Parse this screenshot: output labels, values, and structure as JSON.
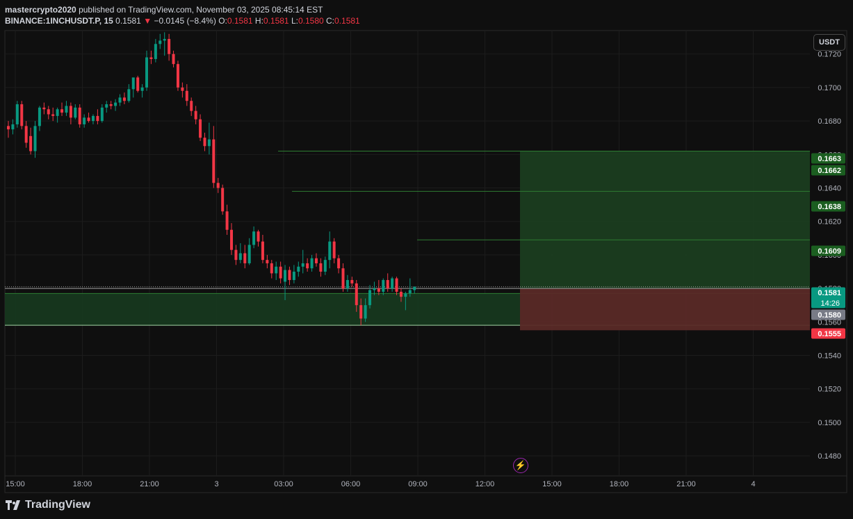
{
  "header": {
    "publisher": "mastercrypto2020",
    "published_text": " published on TradingView.com, November 03, 2025 08:45:14 EST",
    "symbol": "BINANCE:1INCHUSDT.P, 15",
    "price": "0.1581",
    "change_arrow": "▼",
    "change": "−0.0145 (−8.4%)",
    "o_label": "O:",
    "o_value": "0.1581",
    "h_label": "H:",
    "h_value": "0.1581",
    "l_label": "L:",
    "l_value": "0.1580",
    "c_label": "C:",
    "c_value": "0.1581"
  },
  "currency_button": "USDT",
  "footer": {
    "logo_text": "TradingView"
  },
  "colors": {
    "up": "#089981",
    "down": "#f23645",
    "profit_zone": "#1b3d20",
    "loss_zone": "#5a2a27",
    "background": "#0f0f0f"
  },
  "chart_data": {
    "type": "candlestick",
    "y_ticks": [
      "0.1720",
      "0.1700",
      "0.1680",
      "0.1660",
      "0.1640",
      "0.1620",
      "0.1600",
      "0.1580",
      "0.1560",
      "0.1540",
      "0.1520",
      "0.1500",
      "0.1480"
    ],
    "y_range": [
      0.1468,
      0.1734
    ],
    "x_ticks": [
      "15:00",
      "18:00",
      "21:00",
      "3",
      "03:00",
      "06:00",
      "09:00",
      "12:00",
      "15:00",
      "18:00",
      "21:00",
      "4"
    ],
    "price_labels": [
      {
        "text": "0.1663",
        "value": 0.1663,
        "color": "#1b5e20"
      },
      {
        "text": "0.1662",
        "value": 0.1662,
        "color": "#1b5e20"
      },
      {
        "text": "0.1638",
        "value": 0.1638,
        "color": "#1b5e20"
      },
      {
        "text": "0.1609",
        "value": 0.1609,
        "color": "#1b5e20"
      },
      {
        "text": "0.1581",
        "value": 0.1581,
        "color": "#089981",
        "sub": "14:26"
      },
      {
        "text": "0.1580",
        "value": 0.158,
        "color": "#787b86"
      },
      {
        "text": "0.1555",
        "value": 0.1555,
        "color": "#f23645"
      }
    ],
    "levels": [
      0.1662,
      0.1638,
      0.1609
    ],
    "support_zone": [
      0.1558,
      0.1577
    ],
    "position": {
      "entry": 0.158,
      "target": 0.1662,
      "stop": 0.1555
    },
    "candles": [
      {
        "o": 0.1677,
        "h": 0.168,
        "l": 0.167,
        "c": 0.1675
      },
      {
        "o": 0.1675,
        "h": 0.1681,
        "l": 0.1672,
        "c": 0.1678
      },
      {
        "o": 0.1678,
        "h": 0.1692,
        "l": 0.1676,
        "c": 0.169
      },
      {
        "o": 0.169,
        "h": 0.1692,
        "l": 0.1675,
        "c": 0.1677
      },
      {
        "o": 0.1677,
        "h": 0.168,
        "l": 0.1664,
        "c": 0.1667
      },
      {
        "o": 0.1671,
        "h": 0.1676,
        "l": 0.166,
        "c": 0.1662
      },
      {
        "o": 0.1662,
        "h": 0.168,
        "l": 0.1658,
        "c": 0.1677
      },
      {
        "o": 0.1677,
        "h": 0.1689,
        "l": 0.1674,
        "c": 0.1688
      },
      {
        "o": 0.1688,
        "h": 0.1691,
        "l": 0.1684,
        "c": 0.1687
      },
      {
        "o": 0.1687,
        "h": 0.1689,
        "l": 0.1681,
        "c": 0.1684
      },
      {
        "o": 0.1684,
        "h": 0.1688,
        "l": 0.168,
        "c": 0.1683
      },
      {
        "o": 0.1683,
        "h": 0.1688,
        "l": 0.1679,
        "c": 0.1687
      },
      {
        "o": 0.1687,
        "h": 0.1691,
        "l": 0.1683,
        "c": 0.1685
      },
      {
        "o": 0.1685,
        "h": 0.1692,
        "l": 0.1683,
        "c": 0.1689
      },
      {
        "o": 0.1689,
        "h": 0.1691,
        "l": 0.1678,
        "c": 0.1682
      },
      {
        "o": 0.1682,
        "h": 0.169,
        "l": 0.1681,
        "c": 0.1688
      },
      {
        "o": 0.1688,
        "h": 0.169,
        "l": 0.1676,
        "c": 0.1678
      },
      {
        "o": 0.1678,
        "h": 0.1684,
        "l": 0.1676,
        "c": 0.1682
      },
      {
        "o": 0.1682,
        "h": 0.1685,
        "l": 0.1679,
        "c": 0.168
      },
      {
        "o": 0.168,
        "h": 0.1684,
        "l": 0.1678,
        "c": 0.1683
      },
      {
        "o": 0.1683,
        "h": 0.1687,
        "l": 0.1678,
        "c": 0.168
      },
      {
        "o": 0.168,
        "h": 0.169,
        "l": 0.1679,
        "c": 0.1688
      },
      {
        "o": 0.1688,
        "h": 0.1692,
        "l": 0.1685,
        "c": 0.169
      },
      {
        "o": 0.169,
        "h": 0.1692,
        "l": 0.1687,
        "c": 0.1689
      },
      {
        "o": 0.1689,
        "h": 0.1693,
        "l": 0.1686,
        "c": 0.1691
      },
      {
        "o": 0.1691,
        "h": 0.1696,
        "l": 0.1689,
        "c": 0.1694
      },
      {
        "o": 0.1694,
        "h": 0.1697,
        "l": 0.169,
        "c": 0.1692
      },
      {
        "o": 0.1692,
        "h": 0.1702,
        "l": 0.1691,
        "c": 0.1699
      },
      {
        "o": 0.1699,
        "h": 0.1705,
        "l": 0.1694,
        "c": 0.1706
      },
      {
        "o": 0.1706,
        "h": 0.1707,
        "l": 0.1697,
        "c": 0.1698
      },
      {
        "o": 0.1698,
        "h": 0.1702,
        "l": 0.1694,
        "c": 0.17
      },
      {
        "o": 0.17,
        "h": 0.1722,
        "l": 0.1698,
        "c": 0.1718
      },
      {
        "o": 0.1718,
        "h": 0.1722,
        "l": 0.1714,
        "c": 0.1717
      },
      {
        "o": 0.1717,
        "h": 0.1729,
        "l": 0.1715,
        "c": 0.1726
      },
      {
        "o": 0.1726,
        "h": 0.1732,
        "l": 0.1723,
        "c": 0.1728
      },
      {
        "o": 0.1728,
        "h": 0.1733,
        "l": 0.1719,
        "c": 0.1729
      },
      {
        "o": 0.1729,
        "h": 0.1732,
        "l": 0.1716,
        "c": 0.172
      },
      {
        "o": 0.172,
        "h": 0.1722,
        "l": 0.1712,
        "c": 0.1714
      },
      {
        "o": 0.1714,
        "h": 0.1716,
        "l": 0.1698,
        "c": 0.17
      },
      {
        "o": 0.17,
        "h": 0.1703,
        "l": 0.1694,
        "c": 0.1698
      },
      {
        "o": 0.1698,
        "h": 0.1702,
        "l": 0.1689,
        "c": 0.1692
      },
      {
        "o": 0.1692,
        "h": 0.1694,
        "l": 0.1683,
        "c": 0.1686
      },
      {
        "o": 0.1686,
        "h": 0.1689,
        "l": 0.1678,
        "c": 0.1681
      },
      {
        "o": 0.1681,
        "h": 0.1684,
        "l": 0.1668,
        "c": 0.167
      },
      {
        "o": 0.167,
        "h": 0.1673,
        "l": 0.1662,
        "c": 0.1665
      },
      {
        "o": 0.1665,
        "h": 0.1679,
        "l": 0.166,
        "c": 0.1669
      },
      {
        "o": 0.1669,
        "h": 0.1677,
        "l": 0.164,
        "c": 0.1643
      },
      {
        "o": 0.1643,
        "h": 0.1646,
        "l": 0.1637,
        "c": 0.164
      },
      {
        "o": 0.164,
        "h": 0.1642,
        "l": 0.1624,
        "c": 0.1626
      },
      {
        "o": 0.1626,
        "h": 0.163,
        "l": 0.1612,
        "c": 0.1615
      },
      {
        "o": 0.1615,
        "h": 0.1619,
        "l": 0.16,
        "c": 0.1603
      },
      {
        "o": 0.1603,
        "h": 0.1606,
        "l": 0.1594,
        "c": 0.1597
      },
      {
        "o": 0.1597,
        "h": 0.1607,
        "l": 0.1595,
        "c": 0.1601
      },
      {
        "o": 0.1601,
        "h": 0.1606,
        "l": 0.1592,
        "c": 0.1595
      },
      {
        "o": 0.1595,
        "h": 0.161,
        "l": 0.1594,
        "c": 0.1606
      },
      {
        "o": 0.1606,
        "h": 0.1617,
        "l": 0.1604,
        "c": 0.1614
      },
      {
        "o": 0.1614,
        "h": 0.1615,
        "l": 0.1605,
        "c": 0.1608
      },
      {
        "o": 0.1608,
        "h": 0.1612,
        "l": 0.1595,
        "c": 0.1597
      },
      {
        "o": 0.1597,
        "h": 0.16,
        "l": 0.1592,
        "c": 0.1595
      },
      {
        "o": 0.1595,
        "h": 0.1597,
        "l": 0.1586,
        "c": 0.1589
      },
      {
        "o": 0.1589,
        "h": 0.1596,
        "l": 0.1585,
        "c": 0.1593
      },
      {
        "o": 0.1593,
        "h": 0.1596,
        "l": 0.1583,
        "c": 0.1586
      },
      {
        "o": 0.1584,
        "h": 0.1594,
        "l": 0.1573,
        "c": 0.1591
      },
      {
        "o": 0.1591,
        "h": 0.1593,
        "l": 0.1582,
        "c": 0.1585
      },
      {
        "o": 0.1585,
        "h": 0.1594,
        "l": 0.1583,
        "c": 0.159
      },
      {
        "o": 0.159,
        "h": 0.1596,
        "l": 0.1587,
        "c": 0.1593
      },
      {
        "o": 0.1593,
        "h": 0.1603,
        "l": 0.1589,
        "c": 0.1595
      },
      {
        "o": 0.1595,
        "h": 0.1598,
        "l": 0.159,
        "c": 0.1592
      },
      {
        "o": 0.1592,
        "h": 0.16,
        "l": 0.159,
        "c": 0.1598
      },
      {
        "o": 0.1598,
        "h": 0.1601,
        "l": 0.1593,
        "c": 0.1595
      },
      {
        "o": 0.1595,
        "h": 0.1598,
        "l": 0.1587,
        "c": 0.159
      },
      {
        "o": 0.159,
        "h": 0.1599,
        "l": 0.1588,
        "c": 0.1597
      },
      {
        "o": 0.1597,
        "h": 0.1614,
        "l": 0.1592,
        "c": 0.1608
      },
      {
        "o": 0.1608,
        "h": 0.161,
        "l": 0.1595,
        "c": 0.1598
      },
      {
        "o": 0.1598,
        "h": 0.16,
        "l": 0.1589,
        "c": 0.1592
      },
      {
        "o": 0.1592,
        "h": 0.1595,
        "l": 0.1578,
        "c": 0.158
      },
      {
        "o": 0.158,
        "h": 0.1588,
        "l": 0.1578,
        "c": 0.1585
      },
      {
        "o": 0.1585,
        "h": 0.1587,
        "l": 0.1581,
        "c": 0.1583
      },
      {
        "o": 0.1583,
        "h": 0.1585,
        "l": 0.1566,
        "c": 0.157
      },
      {
        "o": 0.157,
        "h": 0.1574,
        "l": 0.1558,
        "c": 0.1562
      },
      {
        "o": 0.1562,
        "h": 0.1574,
        "l": 0.156,
        "c": 0.157
      },
      {
        "o": 0.157,
        "h": 0.1582,
        "l": 0.1568,
        "c": 0.1579
      },
      {
        "o": 0.1579,
        "h": 0.1584,
        "l": 0.1576,
        "c": 0.158
      },
      {
        "o": 0.158,
        "h": 0.1585,
        "l": 0.1576,
        "c": 0.1578
      },
      {
        "o": 0.1578,
        "h": 0.1586,
        "l": 0.1576,
        "c": 0.1585
      },
      {
        "o": 0.1585,
        "h": 0.1589,
        "l": 0.1578,
        "c": 0.158
      },
      {
        "o": 0.158,
        "h": 0.1587,
        "l": 0.1578,
        "c": 0.1586
      },
      {
        "o": 0.1586,
        "h": 0.1587,
        "l": 0.1576,
        "c": 0.1578
      },
      {
        "o": 0.1578,
        "h": 0.158,
        "l": 0.1572,
        "c": 0.1575
      },
      {
        "o": 0.1575,
        "h": 0.1578,
        "l": 0.1567,
        "c": 0.1577
      },
      {
        "o": 0.1577,
        "h": 0.1586,
        "l": 0.1575,
        "c": 0.1579
      },
      {
        "o": 0.1579,
        "h": 0.1581,
        "l": 0.1577,
        "c": 0.1581
      }
    ]
  }
}
